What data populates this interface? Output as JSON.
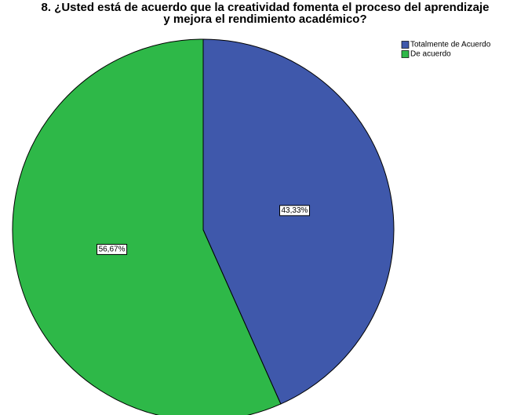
{
  "chart_data": {
    "type": "pie",
    "title": [
      "8. ¿Usted está de acuerdo que la creatividad fomenta el proceso del aprendizaje",
      "y mejora el rendimiento académico?"
    ],
    "categories": [
      "Totalmente de Acuerdo",
      "De acuerdo"
    ],
    "values": [
      43.33,
      56.67
    ],
    "value_labels": [
      "43,33%",
      "56,67%"
    ],
    "colors": [
      "#3f58ab",
      "#2eb848"
    ],
    "legend": "top-right"
  }
}
